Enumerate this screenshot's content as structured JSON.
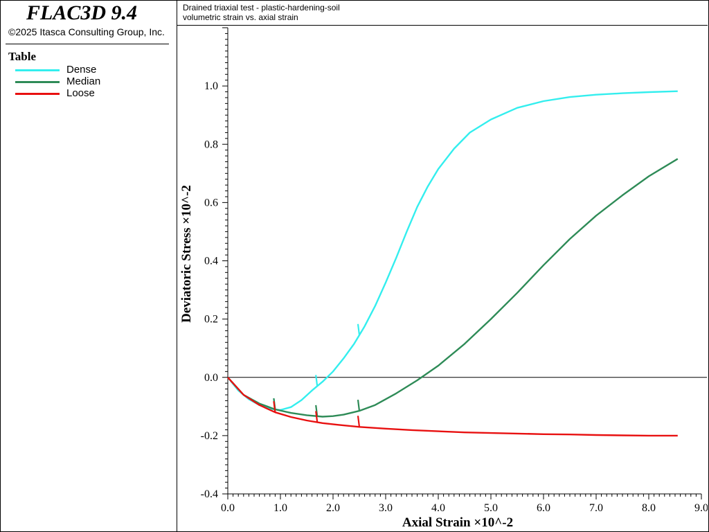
{
  "app": {
    "title": "FLAC3D 9.4",
    "copyright": "©2025 Itasca Consulting Group, Inc."
  },
  "legend": {
    "title": "Table",
    "items": [
      {
        "label": "Dense",
        "color": "#33eeee"
      },
      {
        "label": "Median",
        "color": "#2e8b57"
      },
      {
        "label": "Loose",
        "color": "#e81010"
      }
    ]
  },
  "header": {
    "line1": "Drained triaxial test - plastic-hardening-soil",
    "line2": "volumetric strain vs. axial strain"
  },
  "chart_data": {
    "type": "line",
    "xlabel": "Axial Strain ×10^-2",
    "ylabel": "Deviatoric Stress ×10^-2",
    "xlim": [
      0,
      9
    ],
    "ylim": [
      -0.4,
      1.2
    ],
    "xticks": [
      "0.0",
      "1.0",
      "2.0",
      "3.0",
      "4.0",
      "5.0",
      "6.0",
      "7.0",
      "8.0",
      "9.0"
    ],
    "yticks": [
      "-0.4",
      "-0.2",
      "0.0",
      "0.2",
      "0.4",
      "0.6",
      "0.8",
      "1.0"
    ],
    "zero_line": true,
    "grid": false,
    "series": [
      {
        "name": "Dense",
        "color": "#33eeee",
        "x": [
          0,
          0.2,
          0.4,
          0.6,
          0.8,
          1.0,
          1.2,
          1.4,
          1.6,
          1.8,
          2.0,
          2.2,
          2.4,
          2.6,
          2.8,
          3.0,
          3.2,
          3.4,
          3.6,
          3.8,
          4.0,
          4.3,
          4.6,
          5.0,
          5.5,
          6.0,
          6.5,
          7.0,
          7.5,
          8.0,
          8.55
        ],
        "y": [
          0,
          -0.045,
          -0.075,
          -0.095,
          -0.108,
          -0.112,
          -0.102,
          -0.078,
          -0.045,
          -0.015,
          0.02,
          0.065,
          0.115,
          0.175,
          0.245,
          0.325,
          0.41,
          0.5,
          0.585,
          0.655,
          0.715,
          0.785,
          0.84,
          0.885,
          0.925,
          0.948,
          0.962,
          0.97,
          0.975,
          0.979,
          0.982
        ]
      },
      {
        "name": "Median",
        "color": "#2e8b57",
        "x": [
          0,
          0.3,
          0.6,
          0.9,
          1.2,
          1.5,
          1.8,
          2.0,
          2.2,
          2.5,
          2.8,
          3.2,
          3.6,
          4.0,
          4.5,
          5.0,
          5.5,
          6.0,
          6.5,
          7.0,
          7.5,
          8.0,
          8.55
        ],
        "y": [
          0,
          -0.06,
          -0.09,
          -0.11,
          -0.122,
          -0.13,
          -0.135,
          -0.133,
          -0.128,
          -0.115,
          -0.095,
          -0.055,
          -0.01,
          0.04,
          0.115,
          0.2,
          0.29,
          0.385,
          0.475,
          0.555,
          0.625,
          0.69,
          0.75
        ]
      },
      {
        "name": "Loose",
        "color": "#e81010",
        "x": [
          0,
          0.3,
          0.6,
          0.9,
          1.2,
          1.5,
          1.8,
          2.1,
          2.5,
          3.0,
          3.5,
          4.0,
          4.5,
          5.0,
          5.5,
          6.0,
          6.5,
          7.0,
          7.5,
          8.0,
          8.55
        ],
        "y": [
          0,
          -0.06,
          -0.095,
          -0.12,
          -0.136,
          -0.148,
          -0.157,
          -0.163,
          -0.17,
          -0.176,
          -0.181,
          -0.185,
          -0.189,
          -0.191,
          -0.193,
          -0.195,
          -0.196,
          -0.198,
          -0.199,
          -0.2,
          -0.2
        ]
      }
    ]
  }
}
